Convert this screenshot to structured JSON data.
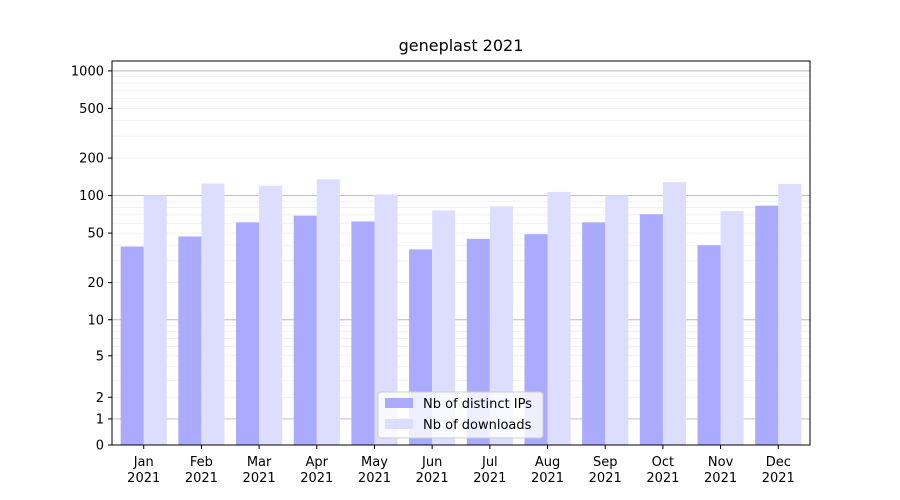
{
  "chart_data": {
    "type": "bar",
    "title": "geneplast 2021",
    "xlabel": "",
    "ylabel": "",
    "y_scale": "symlog",
    "ylim": [
      0,
      1200
    ],
    "y_ticks": [
      0,
      1,
      2,
      5,
      10,
      20,
      50,
      100,
      200,
      500,
      1000
    ],
    "grid": "horizontal",
    "legend_position": "bottom-center",
    "categories": [
      [
        "Jan",
        "2021"
      ],
      [
        "Feb",
        "2021"
      ],
      [
        "Mar",
        "2021"
      ],
      [
        "Apr",
        "2021"
      ],
      [
        "May",
        "2021"
      ],
      [
        "Jun",
        "2021"
      ],
      [
        "Jul",
        "2021"
      ],
      [
        "Aug",
        "2021"
      ],
      [
        "Sep",
        "2021"
      ],
      [
        "Oct",
        "2021"
      ],
      [
        "Nov",
        "2021"
      ],
      [
        "Dec",
        "2021"
      ]
    ],
    "series": [
      {
        "name": "Nb of distinct IPs",
        "color": "#aaaaff",
        "values": [
          39,
          47,
          61,
          69,
          62,
          37,
          45,
          49,
          61,
          71,
          40,
          83
        ]
      },
      {
        "name": "Nb of downloads",
        "color": "#ddddff",
        "values": [
          100,
          125,
          120,
          135,
          102,
          76,
          82,
          107,
          100,
          128,
          75,
          124
        ]
      }
    ]
  }
}
